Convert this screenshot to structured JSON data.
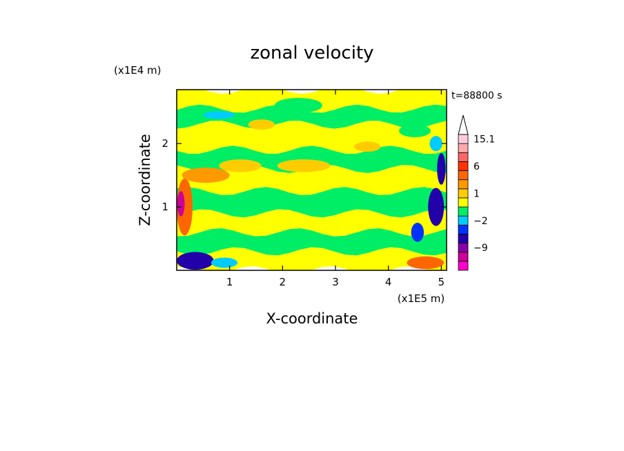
{
  "chart_data": {
    "type": "heatmap",
    "title": "zonal velocity",
    "xlabel": "X-coordinate",
    "ylabel": "Z-coordinate",
    "x_scale_label": "(x1E5 m)",
    "y_scale_label": "(x1E4 m)",
    "time_label": "t=88800 s",
    "xlim": [
      0,
      5.1
    ],
    "ylim": [
      0,
      2.85
    ],
    "x_ticks": [
      1,
      2,
      3,
      4,
      5
    ],
    "y_ticks": [
      1,
      2
    ],
    "colorbar": {
      "levels": [
        -15,
        -12,
        -9,
        -6,
        -3,
        -2,
        -1,
        0,
        1,
        2,
        3,
        6,
        9,
        12,
        15.1
      ],
      "colors": [
        "#ff00cc",
        "#cc0099",
        "#8800aa",
        "#2200aa",
        "#0033ff",
        "#00ccff",
        "#00ee66",
        "#ffff00",
        "#ffcc00",
        "#ff9900",
        "#ff6600",
        "#ff3300",
        "#ff6666",
        "#ffaaaa",
        "#ffccdd"
      ],
      "tick_labels": [
        {
          "value": 15.1,
          "label": "15.1"
        },
        {
          "value": 6,
          "label": "6"
        },
        {
          "value": 1,
          "label": "1"
        },
        {
          "value": -2,
          "label": "−2"
        },
        {
          "value": -9,
          "label": "−9"
        }
      ],
      "extend": "max"
    },
    "field_bands": [
      {
        "z": [
          0.0,
          0.3
        ],
        "u": 1,
        "color": "#ffff00"
      },
      {
        "z": [
          0.3,
          0.6
        ],
        "u": 0,
        "color": "#00ee66"
      },
      {
        "z": [
          0.6,
          0.9
        ],
        "u": 1,
        "color": "#ffff00"
      },
      {
        "z": [
          0.9,
          1.25
        ],
        "u": 0,
        "color": "#00ee66"
      },
      {
        "z": [
          1.25,
          1.6
        ],
        "u": 1,
        "color": "#ffff00"
      },
      {
        "z": [
          1.6,
          1.9
        ],
        "u": 0,
        "color": "#00ee66"
      },
      {
        "z": [
          1.9,
          2.3
        ],
        "u": 1,
        "color": "#ffff00"
      },
      {
        "z": [
          2.3,
          2.55
        ],
        "u": 0,
        "color": "#00ee66"
      },
      {
        "z": [
          2.55,
          2.85
        ],
        "u": 1,
        "color": "#ffff00"
      }
    ],
    "features": [
      {
        "x": 0.15,
        "z": 1.0,
        "rx": 0.15,
        "rz": 0.45,
        "u": 6,
        "color": "#ff6600"
      },
      {
        "x": 0.08,
        "z": 1.05,
        "rx": 0.07,
        "rz": 0.2,
        "u": -12,
        "color": "#cc0099"
      },
      {
        "x": 0.35,
        "z": 0.15,
        "rx": 0.35,
        "rz": 0.14,
        "u": -6,
        "color": "#2200aa"
      },
      {
        "x": 0.9,
        "z": 0.12,
        "rx": 0.25,
        "rz": 0.08,
        "u": -2,
        "color": "#00ccff"
      },
      {
        "x": 0.55,
        "z": 1.5,
        "rx": 0.45,
        "rz": 0.12,
        "u": 3,
        "color": "#ff9900"
      },
      {
        "x": 1.2,
        "z": 1.65,
        "rx": 0.4,
        "rz": 0.1,
        "u": 2,
        "color": "#ffcc00"
      },
      {
        "x": 0.8,
        "z": 2.45,
        "rx": 0.3,
        "rz": 0.06,
        "u": -1,
        "color": "#00ccff"
      },
      {
        "x": 1.6,
        "z": 2.3,
        "rx": 0.25,
        "rz": 0.08,
        "u": 2,
        "color": "#ffcc00"
      },
      {
        "x": 2.4,
        "z": 1.65,
        "rx": 0.5,
        "rz": 0.1,
        "u": 2,
        "color": "#ffcc00"
      },
      {
        "x": 4.9,
        "z": 1.0,
        "rx": 0.15,
        "rz": 0.3,
        "u": -6,
        "color": "#2200aa"
      },
      {
        "x": 4.55,
        "z": 0.6,
        "rx": 0.12,
        "rz": 0.15,
        "u": -3,
        "color": "#0033ff"
      },
      {
        "x": 5.0,
        "z": 1.6,
        "rx": 0.08,
        "rz": 0.25,
        "u": -6,
        "color": "#2200aa"
      },
      {
        "x": 4.7,
        "z": 0.12,
        "rx": 0.35,
        "rz": 0.1,
        "u": 6,
        "color": "#ff6600"
      },
      {
        "x": 4.9,
        "z": 2.0,
        "rx": 0.12,
        "rz": 0.12,
        "u": -2,
        "color": "#00ccff"
      },
      {
        "x": 3.6,
        "z": 1.95,
        "rx": 0.25,
        "rz": 0.08,
        "u": 2,
        "color": "#ffcc00"
      },
      {
        "x": 2.3,
        "z": 2.6,
        "rx": 0.45,
        "rz": 0.12,
        "u": 0,
        "color": "#00ee66"
      },
      {
        "x": 4.5,
        "z": 2.2,
        "rx": 0.3,
        "rz": 0.1,
        "u": 0,
        "color": "#00ee66"
      }
    ]
  }
}
